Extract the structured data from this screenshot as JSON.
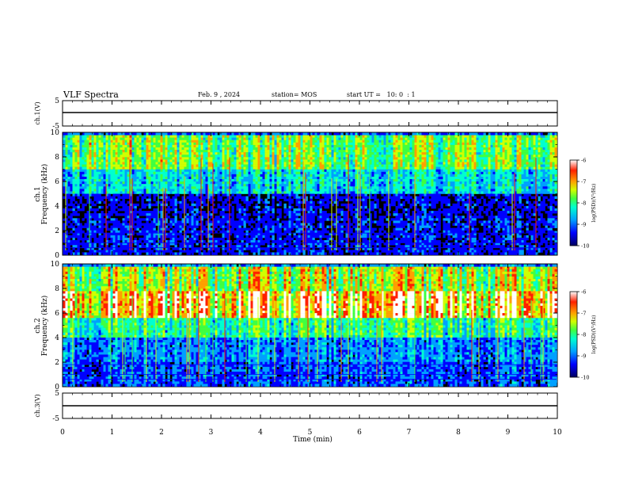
{
  "header": {
    "title": "VLF Spectra",
    "date": "Feb. 9 , 2024",
    "station": "station= MOS",
    "start": "start UT =   10: 0  : 1"
  },
  "chart_data": [
    {
      "type": "line",
      "panel": "ch1-waveform",
      "ylabel": "ch.1(V)",
      "ylim": [
        -5,
        5
      ],
      "yticks": [
        "5",
        "-5"
      ],
      "xlim": [
        0,
        10
      ],
      "series": [
        {
          "x": [
            0,
            10
          ],
          "values": [
            0,
            0
          ]
        }
      ]
    },
    {
      "type": "heatmap",
      "panel": "ch1-spectrogram",
      "ylabel": "ch.1 Frequency (kHz)",
      "ylim": [
        0,
        10
      ],
      "yticks": [
        "0",
        "2",
        "4",
        "6",
        "8",
        "10"
      ],
      "xlim": [
        0,
        10
      ],
      "colorbar": {
        "label": "log(PSD)(V²/Hz)",
        "range": [
          -10,
          -6
        ],
        "ticks": [
          "-6",
          "-7",
          "-8",
          "-9",
          "-10"
        ]
      }
    },
    {
      "type": "heatmap",
      "panel": "ch2-spectrogram",
      "ylabel": "ch.2 Frequency (kHz)",
      "ylim": [
        0,
        10
      ],
      "yticks": [
        "0",
        "2",
        "4",
        "6",
        "8",
        "10"
      ],
      "xlim": [
        0,
        10
      ],
      "colorbar": {
        "label": "log(PSD)(V²/Hz)",
        "range": [
          -10,
          -6
        ],
        "ticks": [
          "-6",
          "-7",
          "-8",
          "-9",
          "-10"
        ]
      }
    },
    {
      "type": "line",
      "panel": "ch3-waveform",
      "ylabel": "ch.3(V)",
      "ylim": [
        -5,
        5
      ],
      "yticks": [
        "5",
        "-5"
      ],
      "xlim": [
        0,
        10
      ],
      "xlabel": "Time (min)",
      "xticks": [
        "0",
        "1",
        "2",
        "3",
        "4",
        "5",
        "6",
        "7",
        "8",
        "9",
        "10"
      ],
      "series": [
        {
          "x": [
            0,
            10
          ],
          "values": [
            0,
            0
          ]
        }
      ]
    }
  ],
  "colors": {
    "background": "#000000",
    "colormap": [
      "#000060",
      "#0000ff",
      "#00a0ff",
      "#00ffd0",
      "#40ff40",
      "#d0ff00",
      "#ffa000",
      "#ff2000",
      "#ffffff"
    ]
  }
}
